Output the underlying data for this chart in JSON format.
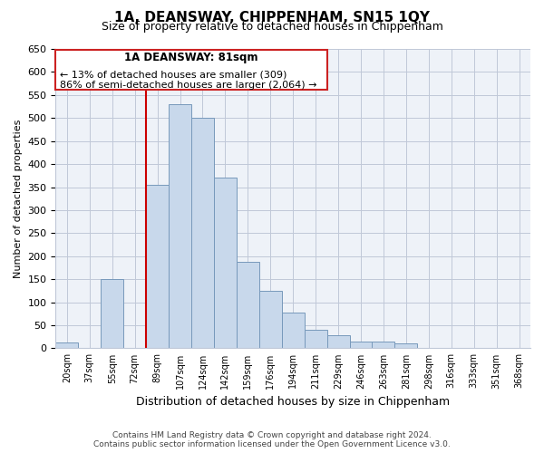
{
  "title": "1A, DEANSWAY, CHIPPENHAM, SN15 1QY",
  "subtitle": "Size of property relative to detached houses in Chippenham",
  "xlabel": "Distribution of detached houses by size in Chippenham",
  "ylabel": "Number of detached properties",
  "bin_labels": [
    "20sqm",
    "37sqm",
    "55sqm",
    "72sqm",
    "89sqm",
    "107sqm",
    "124sqm",
    "142sqm",
    "159sqm",
    "176sqm",
    "194sqm",
    "211sqm",
    "229sqm",
    "246sqm",
    "263sqm",
    "281sqm",
    "298sqm",
    "316sqm",
    "333sqm",
    "351sqm",
    "368sqm"
  ],
  "bar_values": [
    13,
    0,
    150,
    0,
    355,
    530,
    500,
    370,
    187,
    125,
    78,
    40,
    28,
    14,
    14,
    10,
    0,
    0,
    0,
    0,
    0
  ],
  "bar_color": "#c8d8eb",
  "bar_edge_color": "#7799bb",
  "vline_color": "#cc0000",
  "vline_index": 4,
  "ylim": [
    0,
    650
  ],
  "yticks": [
    0,
    50,
    100,
    150,
    200,
    250,
    300,
    350,
    400,
    450,
    500,
    550,
    600,
    650
  ],
  "annotation_title": "1A DEANSWAY: 81sqm",
  "annotation_line1": "← 13% of detached houses are smaller (309)",
  "annotation_line2": "86% of semi-detached houses are larger (2,064) →",
  "footer1": "Contains HM Land Registry data © Crown copyright and database right 2024.",
  "footer2": "Contains public sector information licensed under the Open Government Licence v3.0.",
  "bg_color": "#ffffff",
  "plot_bg_color": "#eef2f8",
  "grid_color": "#c0c8d8"
}
